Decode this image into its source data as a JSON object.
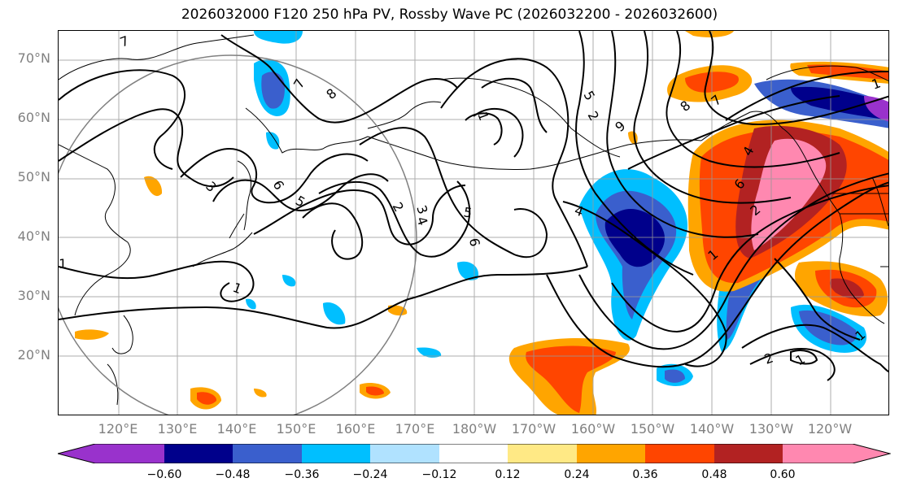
{
  "title": "2026032000 F120 250 hPa PV, Rossby Wave PC (2026032200 - 2026032600)",
  "lat_labels": [
    "70°N",
    "60°N",
    "50°N",
    "40°N",
    "30°N",
    "20°N"
  ],
  "lon_labels": [
    "120°E",
    "130°E",
    "140°E",
    "150°E",
    "160°E",
    "170°E",
    "180°W",
    "170°W",
    "160°W",
    "150°W",
    "140°W",
    "130°W",
    "120°W"
  ],
  "colorbar": {
    "ticks": [
      "−0.60",
      "−0.48",
      "−0.36",
      "−0.24",
      "−0.12",
      "0.12",
      "0.24",
      "0.36",
      "0.48",
      "0.60"
    ],
    "colors": [
      "#9932cc",
      "#00008b",
      "#3a5fcd",
      "#00bfff",
      "#b0e2ff",
      "#ffffff",
      "#ffe985",
      "#ffa500",
      "#ff4500",
      "#b22222",
      "#ff88b0"
    ]
  },
  "contour_labels": [
    "7",
    "8",
    "7",
    "3",
    "6",
    "5",
    "1",
    "2",
    "3",
    "4",
    "5",
    "6",
    "1",
    "4",
    "5",
    "2",
    "8",
    "7",
    "9",
    "4",
    "6",
    "2",
    "1",
    "1",
    "1",
    "1",
    "2",
    "1"
  ]
}
